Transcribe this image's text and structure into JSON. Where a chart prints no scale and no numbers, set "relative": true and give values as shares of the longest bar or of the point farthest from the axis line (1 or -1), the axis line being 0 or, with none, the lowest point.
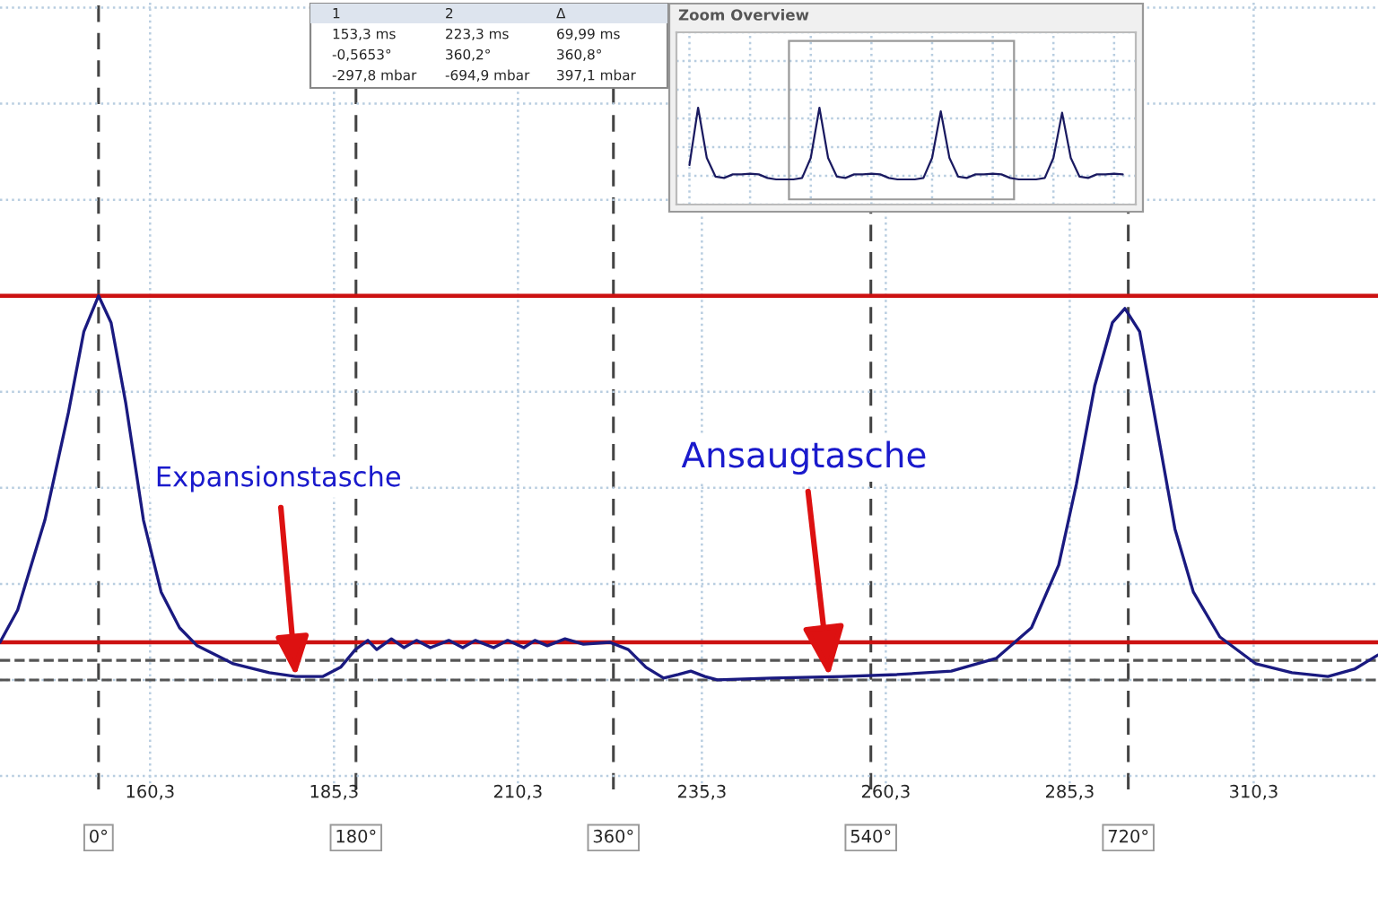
{
  "chart_data": [
    {
      "type": "line",
      "relative": true,
      "x": [
        139.9,
        142.3,
        146.0,
        149.2,
        151.3,
        153.3,
        155.0,
        157.0,
        159.4,
        161.8,
        164.3,
        166.7,
        171.6,
        176.5,
        180.1,
        183.8,
        186.2,
        188.2,
        189.9,
        191.1,
        193.1,
        194.8,
        196.5,
        198.4,
        200.9,
        202.8,
        204.5,
        207.0,
        208.9,
        211.1,
        212.6,
        214.3,
        216.7,
        219.2,
        222.8,
        225.3,
        227.7,
        230.1,
        232.1,
        233.8,
        235.7,
        237.4,
        244.8,
        254.5,
        261.8,
        269.2,
        275.3,
        280.1,
        283.8,
        286.2,
        288.7,
        291.1,
        292.8,
        294.8,
        297.2,
        299.6,
        302.1,
        305.7,
        310.6,
        315.5,
        320.4,
        324.0,
        327.2
      ],
      "series": [
        {
          "color": "#1a1a80",
          "values": [
            0.098,
            0.182,
            0.416,
            0.696,
            0.907,
            1.0,
            0.93,
            0.72,
            0.416,
            0.229,
            0.136,
            0.089,
            0.042,
            0.019,
            0.009,
            0.009,
            0.033,
            0.079,
            0.103,
            0.079,
            0.107,
            0.084,
            0.103,
            0.084,
            0.103,
            0.084,
            0.103,
            0.084,
            0.103,
            0.084,
            0.103,
            0.089,
            0.107,
            0.093,
            0.098,
            0.079,
            0.033,
            0.005,
            0.014,
            0.023,
            0.009,
            0,
            0.005,
            0.009,
            0.014,
            0.023,
            0.056,
            0.136,
            0.299,
            0.509,
            0.766,
            0.93,
            0.967,
            0.907,
            0.65,
            0.393,
            0.229,
            0.112,
            0.042,
            0.019,
            0.009,
            0.028,
            0.065
          ]
        }
      ],
      "xlim": [
        139.9,
        327.2
      ],
      "xticks": [
        {
          "value": 160.3,
          "label": "160,3"
        },
        {
          "value": 185.3,
          "label": "185,3"
        },
        {
          "value": 210.3,
          "label": "210,3"
        },
        {
          "value": 235.3,
          "label": "235,3"
        },
        {
          "value": 260.3,
          "label": "260,3"
        },
        {
          "value": 285.3,
          "label": "285,3"
        },
        {
          "value": 310.3,
          "label": "310,3"
        }
      ],
      "x2lim": [
        -68.9,
        894.6
      ],
      "x2ticks": [
        {
          "value": 0,
          "label": "0°"
        },
        {
          "value": 180,
          "label": "180°"
        },
        {
          "value": 360,
          "label": "360°"
        },
        {
          "value": 540,
          "label": "540°"
        },
        {
          "value": 720,
          "label": "720°"
        }
      ],
      "grid": true,
      "marker": "none",
      "line_style": "solid",
      "ref_lines": [
        {
          "axis": "y",
          "value": 1.0,
          "color": "#cc1111",
          "line_style": "solid"
        },
        {
          "axis": "y",
          "value": 0.098,
          "color": "#cc1111",
          "line_style": "solid"
        },
        {
          "axis": "y",
          "value": 0.051,
          "color": "#555555",
          "line_style": "dashed"
        },
        {
          "axis": "y",
          "value": 0,
          "color": "#555555",
          "line_style": "dashed"
        }
      ],
      "annotations": [
        {
          "text": "Expansionstasche",
          "x": 180.1,
          "y": 0.009
        },
        {
          "text": "Ansaugtasche",
          "x": 252.6,
          "y": 0.009
        },
        "1",
        "2",
        "Δ",
        "153,3 ms",
        "223,3 ms",
        "69,99 ms",
        "-0,5653°",
        "360,2°",
        "360,8°",
        "-297,8 mbar",
        "-694,9 mbar",
        "397,1 mbar"
      ]
    },
    {
      "type": "line",
      "relative": true,
      "title": "Zoom Overview",
      "grid": true,
      "categories": [
        null,
        null,
        null,
        null,
        null,
        null,
        null,
        null,
        null,
        null,
        null,
        null,
        null,
        null,
        null,
        null,
        null,
        null,
        null,
        null,
        null,
        null,
        null,
        null,
        null,
        null,
        null,
        null,
        null,
        null,
        null,
        null,
        null,
        null,
        null,
        null,
        null,
        null,
        null,
        null,
        null,
        null,
        null,
        null,
        null,
        null,
        null,
        null,
        null,
        null,
        null
      ],
      "series": [
        {
          "color": "#1a1a60",
          "values": [
            0.2,
            1.0,
            0.3,
            0.04,
            0.02,
            0.07,
            0.07,
            0.08,
            0.07,
            0.02,
            0,
            0,
            0,
            0.02,
            0.3,
            1.0,
            0.3,
            0.04,
            0.02,
            0.07,
            0.07,
            0.08,
            0.07,
            0.02,
            0,
            0,
            0,
            0.02,
            0.3,
            0.95,
            0.3,
            0.04,
            0.02,
            0.07,
            0.07,
            0.08,
            0.07,
            0.02,
            0,
            0,
            0,
            0.02,
            0.3,
            0.93,
            0.3,
            0.04,
            0.02,
            0.07,
            0.07,
            0.08,
            0.07
          ]
        }
      ]
    }
  ]
}
